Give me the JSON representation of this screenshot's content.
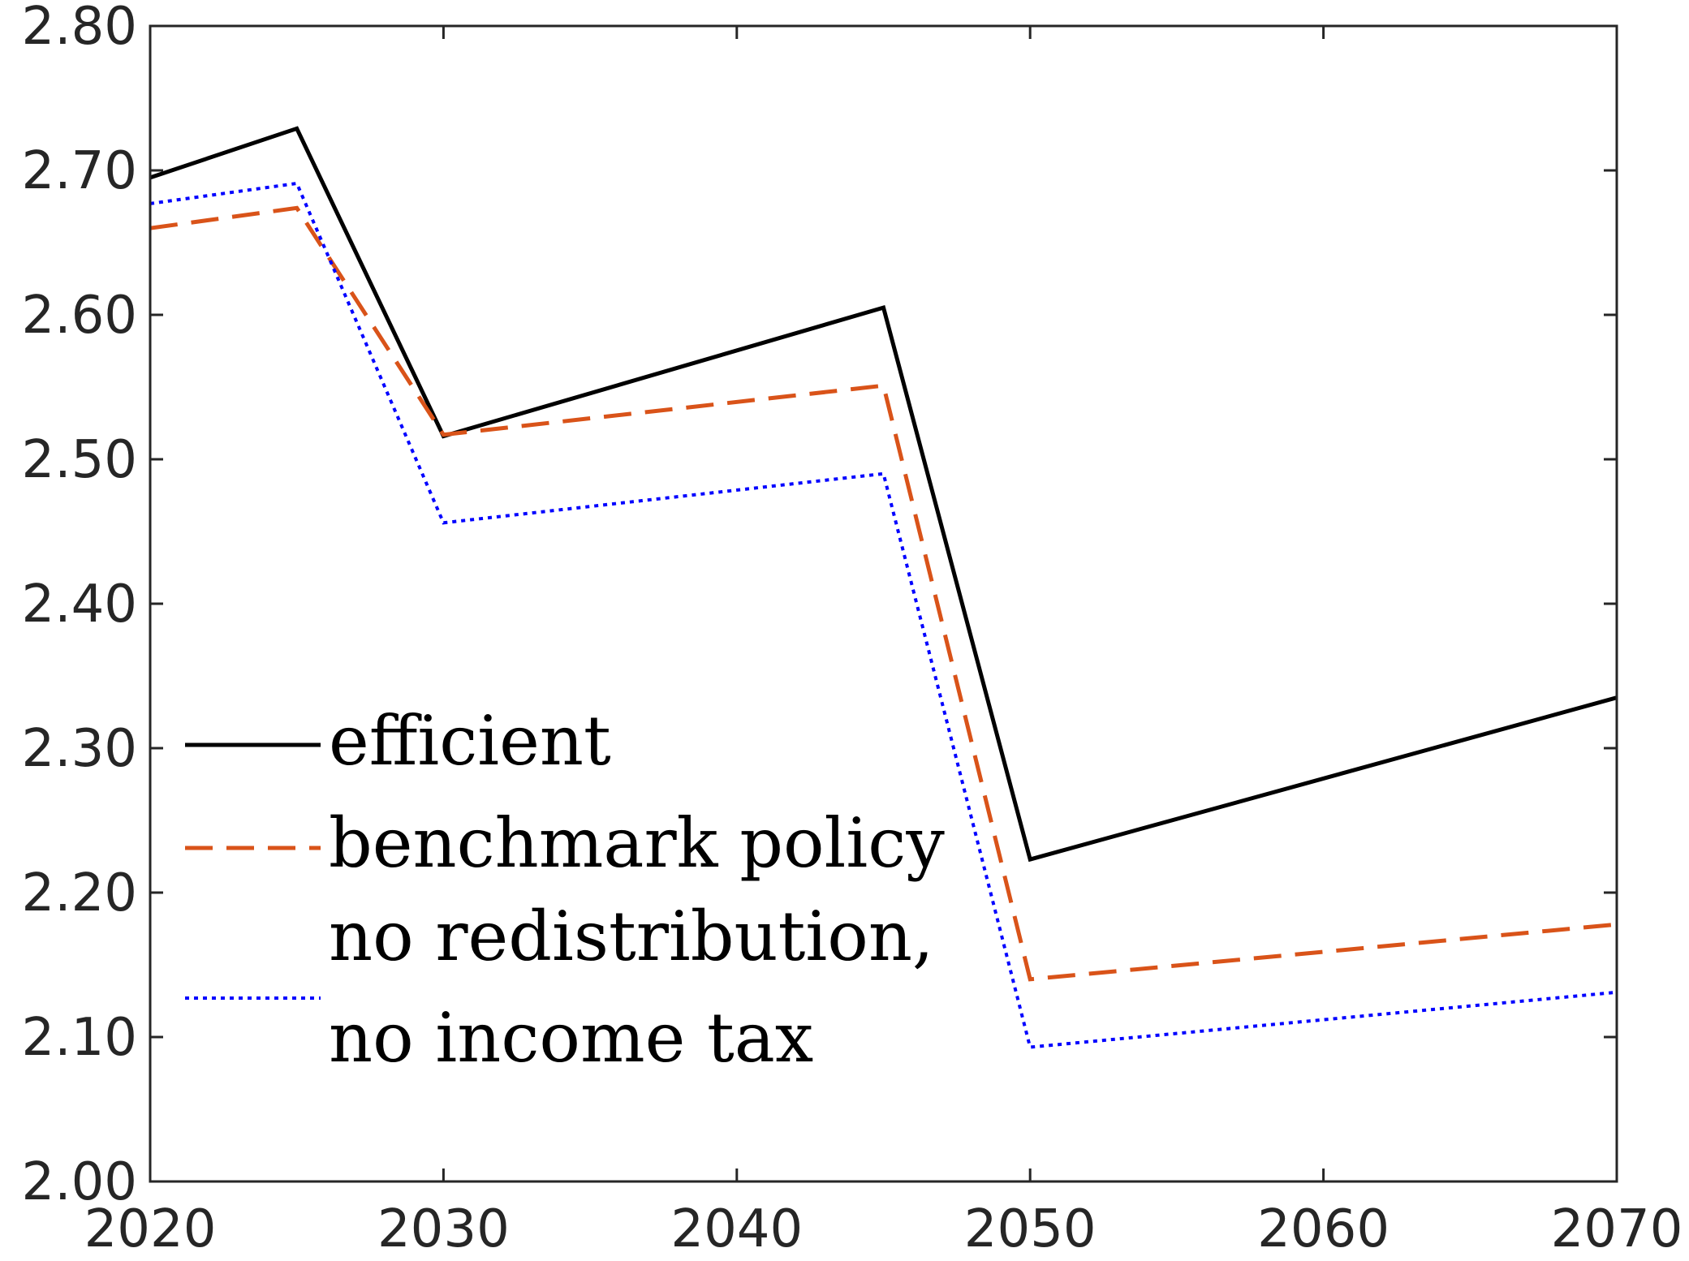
{
  "chart_data": {
    "type": "line",
    "title": "",
    "xlabel": "",
    "ylabel": "",
    "xlim": [
      2020,
      2070
    ],
    "ylim": [
      2.0,
      2.8
    ],
    "xticks": [
      "2020",
      "2030",
      "2040",
      "2050",
      "2060",
      "2070"
    ],
    "yticks": [
      "2.00",
      "2.10",
      "2.20",
      "2.30",
      "2.40",
      "2.50",
      "2.60",
      "2.70",
      "2.80"
    ],
    "grid": false,
    "legend_position": "lower-left",
    "series": [
      {
        "name": "efficient",
        "color": "#000000",
        "style": "solid",
        "x": [
          2020,
          2025,
          2030,
          2045,
          2050,
          2070
        ],
        "y": [
          2.695,
          2.729,
          2.516,
          2.605,
          2.223,
          2.335
        ]
      },
      {
        "name": "benchmark policy",
        "color": "#D95319",
        "style": "dashed",
        "x": [
          2020,
          2025,
          2030,
          2045,
          2050,
          2070
        ],
        "y": [
          2.66,
          2.674,
          2.517,
          2.551,
          2.14,
          2.178
        ]
      },
      {
        "name": "no redistribution,",
        "name_line2": "no income tax",
        "color": "#0000FF",
        "style": "dotted",
        "x": [
          2020,
          2025,
          2030,
          2045,
          2050,
          2070
        ],
        "y": [
          2.677,
          2.691,
          2.456,
          2.49,
          2.093,
          2.131
        ]
      }
    ]
  }
}
